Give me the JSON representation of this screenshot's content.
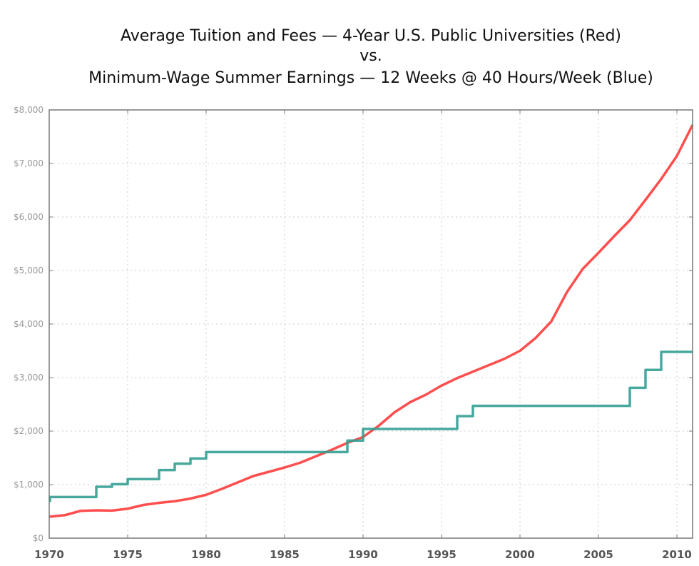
{
  "chart_data": {
    "type": "line",
    "title": [
      "Average Tuition and Fees — 4-Year U.S. Public Universities (Red)",
      "vs.",
      "Minimum-Wage Summer Earnings — 12 Weeks @ 40 Hours/Week (Blue)"
    ],
    "xlabel": "",
    "ylabel": "",
    "xlim": [
      1970,
      2011
    ],
    "ylim": [
      0,
      8000
    ],
    "grid": true,
    "x_ticks": [
      "1970",
      "1975",
      "1980",
      "1985",
      "1990",
      "1995",
      "2000",
      "2005",
      "2010"
    ],
    "y_ticks": [
      "$0",
      "$1,000",
      "$2,000",
      "$3,000",
      "$4,000",
      "$5,000",
      "$6,000",
      "$7,000",
      "$8,000"
    ],
    "series": [
      {
        "name": "Average Tuition and Fees (Red)",
        "color": "#ff3b3b",
        "style": "line",
        "x": [
          1970,
          1971,
          1972,
          1973,
          1974,
          1975,
          1976,
          1977,
          1978,
          1979,
          1980,
          1981,
          1982,
          1983,
          1984,
          1985,
          1986,
          1987,
          1988,
          1989,
          1990,
          1991,
          1992,
          1993,
          1994,
          1995,
          1996,
          1997,
          1998,
          1999,
          2000,
          2001,
          2002,
          2003,
          2004,
          2005,
          2006,
          2007,
          2008,
          2009,
          2010,
          2011
        ],
        "values": [
          400,
          430,
          510,
          520,
          515,
          550,
          620,
          660,
          690,
          740,
          810,
          920,
          1040,
          1160,
          1240,
          1320,
          1410,
          1530,
          1650,
          1780,
          1890,
          2100,
          2350,
          2540,
          2680,
          2850,
          2990,
          3110,
          3230,
          3350,
          3500,
          3740,
          4050,
          4600,
          5030,
          5330,
          5640,
          5940,
          6320,
          6710,
          7140,
          7720
        ]
      },
      {
        "name": "Minimum-Wage Summer Earnings (Blue)",
        "color": "#339e94",
        "style": "step",
        "x": [
          1970,
          1970.05,
          1973,
          1974,
          1975,
          1977,
          1978,
          1979,
          1980,
          1989,
          1990,
          1996,
          1997,
          2007,
          2008,
          2009,
          2011
        ],
        "values": [
          696,
          768,
          960,
          1008,
          1104,
          1272,
          1392,
          1488,
          1608,
          1824,
          2040,
          2280,
          2472,
          2808,
          3144,
          3480,
          3480
        ]
      }
    ]
  }
}
